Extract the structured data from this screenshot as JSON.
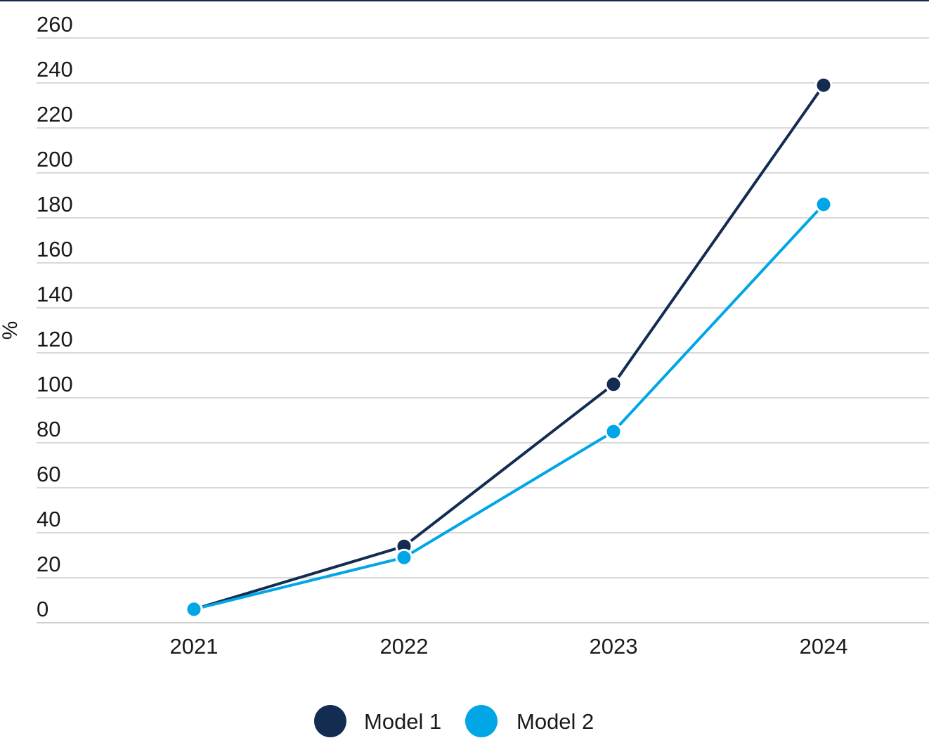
{
  "chart_data": {
    "type": "line",
    "title": "",
    "xlabel": "",
    "ylabel": "%",
    "x": [
      "2021",
      "2022",
      "2023",
      "2024"
    ],
    "ylim": [
      0,
      260
    ],
    "yticks": [
      0,
      20,
      40,
      60,
      80,
      100,
      120,
      140,
      160,
      180,
      200,
      220,
      240,
      260
    ],
    "grid": true,
    "legend_position": "bottom-center",
    "series": [
      {
        "name": "Model 1",
        "color": "#122c52",
        "values": [
          6,
          34,
          106,
          239
        ]
      },
      {
        "name": "Model 2",
        "color": "#00a6e6",
        "values": [
          6,
          29,
          85,
          186
        ]
      }
    ]
  }
}
